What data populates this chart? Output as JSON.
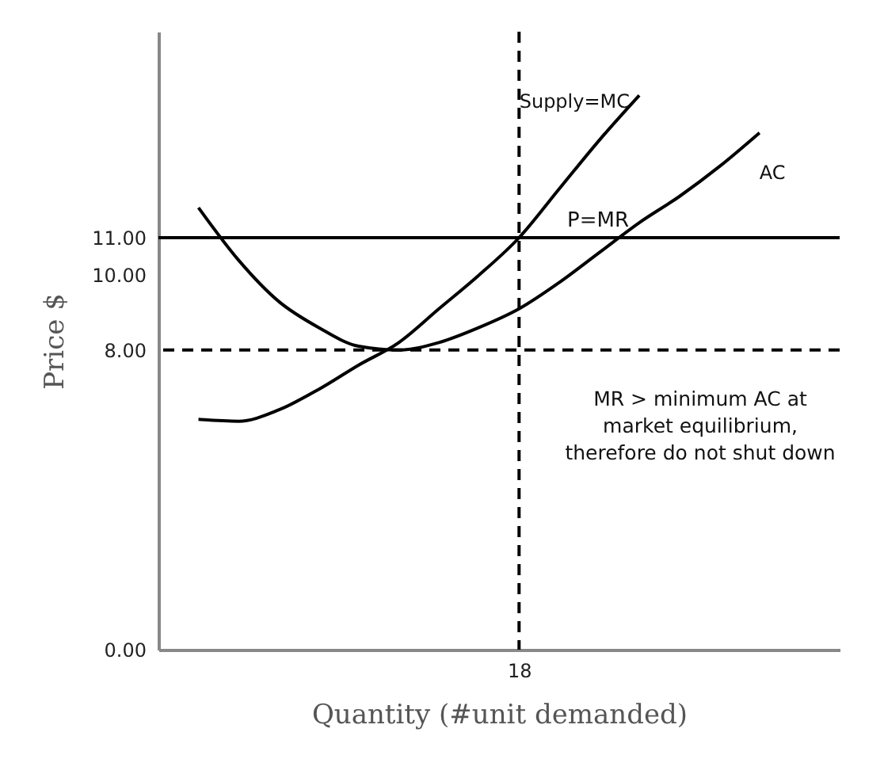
{
  "chart_data": {
    "type": "line",
    "xlabel": "Quantity (#unit demanded)",
    "ylabel": "Price $",
    "categories": [
      null,
      null,
      null,
      null,
      null,
      null,
      null,
      null,
      null,
      "18",
      null,
      null,
      null,
      null,
      null,
      null,
      null,
      null
    ],
    "ylim": [
      0,
      16.5
    ],
    "yticks": [
      {
        "value": 0,
        "label": "0.00"
      },
      {
        "value": 8,
        "label": "8.00"
      },
      {
        "value": 10,
        "label": "10.00"
      },
      {
        "value": 11,
        "label": "11.00"
      }
    ],
    "series": [
      {
        "name": "Supply=MC",
        "color": "#000000",
        "values": [
          null,
          6.15,
          6.1,
          6.4,
          6.95,
          7.6,
          8.2,
          9.1,
          10,
          11,
          12.3,
          13.6,
          14.8,
          null,
          null,
          null,
          null,
          null
        ]
      },
      {
        "name": "AC",
        "color": "#000000",
        "values": [
          null,
          11.8,
          10.4,
          9.3,
          8.6,
          8.1,
          8,
          8.2,
          8.6,
          9.1,
          9.8,
          10.6,
          11.4,
          12.1,
          12.9,
          13.8,
          null,
          null
        ]
      }
    ],
    "ref_lines": [
      {
        "axis": "y",
        "value": 11,
        "label": "P=MR",
        "line_style": "solid"
      },
      {
        "axis": "y",
        "value": 8,
        "line_style": "dashed"
      },
      {
        "axis": "x",
        "value": "18",
        "line_style": "dashed"
      }
    ],
    "annotations": [
      "MR > minimum AC at\nmarket equilibrium,\ntherefore do not shut down"
    ],
    "marker": "none",
    "line_style": "solid"
  }
}
